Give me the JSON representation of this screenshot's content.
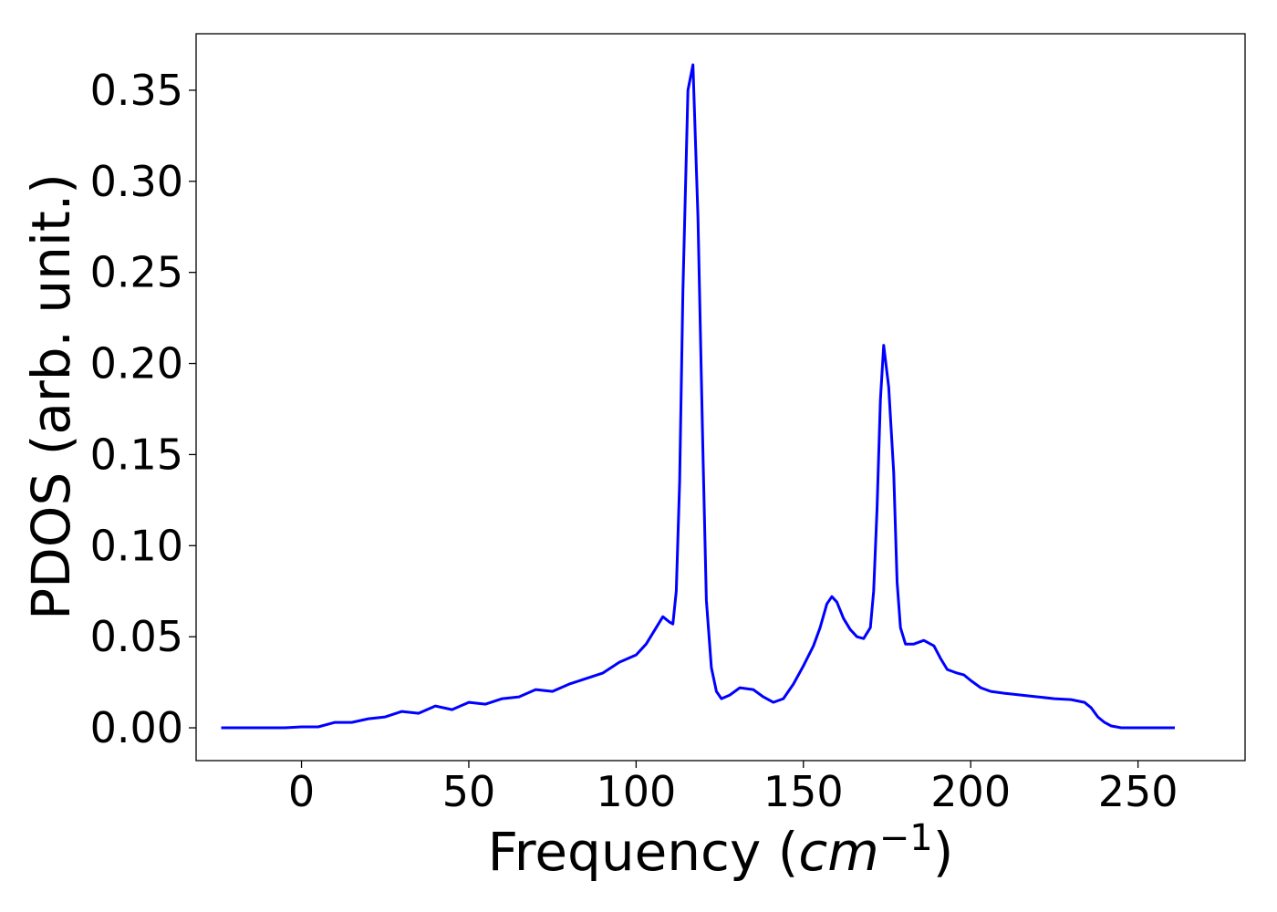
{
  "chart_data": {
    "type": "line",
    "title": "",
    "xlabel": "Frequency (cm⁻¹)",
    "xlabel_parts": {
      "prefix": "Frequency (",
      "italic": "cm",
      "superscript": "−1",
      "suffix": ")"
    },
    "ylabel": "PDOS (arb. unit.)",
    "xlim": [
      -31.5,
      282
    ],
    "ylim": [
      -0.018,
      0.381
    ],
    "xticks": [
      0,
      50,
      100,
      150,
      200,
      250
    ],
    "xtick_labels": [
      "0",
      "50",
      "100",
      "150",
      "200",
      "250"
    ],
    "yticks": [
      0.0,
      0.05,
      0.1,
      0.15,
      0.2,
      0.25,
      0.3,
      0.35
    ],
    "ytick_labels": [
      "0.00",
      "0.05",
      "0.10",
      "0.15",
      "0.20",
      "0.25",
      "0.30",
      "0.35"
    ],
    "grid": false,
    "legend": "none",
    "series": [
      {
        "color": "#0000ff",
        "points": [
          [
            -24,
            0.0
          ],
          [
            -5,
            0.0
          ],
          [
            0,
            0.0005
          ],
          [
            5,
            0.0005
          ],
          [
            10,
            0.003
          ],
          [
            15,
            0.003
          ],
          [
            20,
            0.005
          ],
          [
            25,
            0.006
          ],
          [
            30,
            0.009
          ],
          [
            35,
            0.008
          ],
          [
            40,
            0.012
          ],
          [
            45,
            0.01
          ],
          [
            50,
            0.014
          ],
          [
            55,
            0.013
          ],
          [
            60,
            0.016
          ],
          [
            65,
            0.017
          ],
          [
            70,
            0.021
          ],
          [
            75,
            0.02
          ],
          [
            80,
            0.024
          ],
          [
            85,
            0.027
          ],
          [
            90,
            0.03
          ],
          [
            95,
            0.036
          ],
          [
            100,
            0.04
          ],
          [
            103,
            0.046
          ],
          [
            106,
            0.055
          ],
          [
            108,
            0.061
          ],
          [
            110,
            0.058
          ],
          [
            111,
            0.057
          ],
          [
            112,
            0.075
          ],
          [
            113,
            0.135
          ],
          [
            114,
            0.24
          ],
          [
            115.5,
            0.35
          ],
          [
            117,
            0.364
          ],
          [
            118.5,
            0.28
          ],
          [
            120,
            0.15
          ],
          [
            121,
            0.07
          ],
          [
            122.5,
            0.033
          ],
          [
            124,
            0.02
          ],
          [
            125.5,
            0.016
          ],
          [
            128,
            0.018
          ],
          [
            131,
            0.022
          ],
          [
            135,
            0.021
          ],
          [
            138,
            0.017
          ],
          [
            141,
            0.014
          ],
          [
            144,
            0.016
          ],
          [
            147,
            0.024
          ],
          [
            150,
            0.034
          ],
          [
            153,
            0.045
          ],
          [
            155,
            0.055
          ],
          [
            157,
            0.068
          ],
          [
            158.5,
            0.072
          ],
          [
            160,
            0.069
          ],
          [
            162,
            0.06
          ],
          [
            164,
            0.054
          ],
          [
            166,
            0.05
          ],
          [
            168,
            0.049
          ],
          [
            170,
            0.055
          ],
          [
            171,
            0.075
          ],
          [
            172,
            0.12
          ],
          [
            173,
            0.18
          ],
          [
            174,
            0.21
          ],
          [
            175.5,
            0.187
          ],
          [
            177,
            0.14
          ],
          [
            178,
            0.08
          ],
          [
            179,
            0.055
          ],
          [
            180.5,
            0.046
          ],
          [
            183,
            0.046
          ],
          [
            186,
            0.048
          ],
          [
            189,
            0.045
          ],
          [
            191,
            0.038
          ],
          [
            193,
            0.032
          ],
          [
            196,
            0.03
          ],
          [
            198,
            0.029
          ],
          [
            200,
            0.026
          ],
          [
            203,
            0.022
          ],
          [
            206,
            0.02
          ],
          [
            210,
            0.019
          ],
          [
            215,
            0.018
          ],
          [
            220,
            0.017
          ],
          [
            225,
            0.016
          ],
          [
            230,
            0.0155
          ],
          [
            234,
            0.014
          ],
          [
            236,
            0.011
          ],
          [
            238,
            0.006
          ],
          [
            240,
            0.003
          ],
          [
            242,
            0.001
          ],
          [
            245,
            0.0
          ],
          [
            261,
            0.0
          ]
        ]
      }
    ]
  }
}
